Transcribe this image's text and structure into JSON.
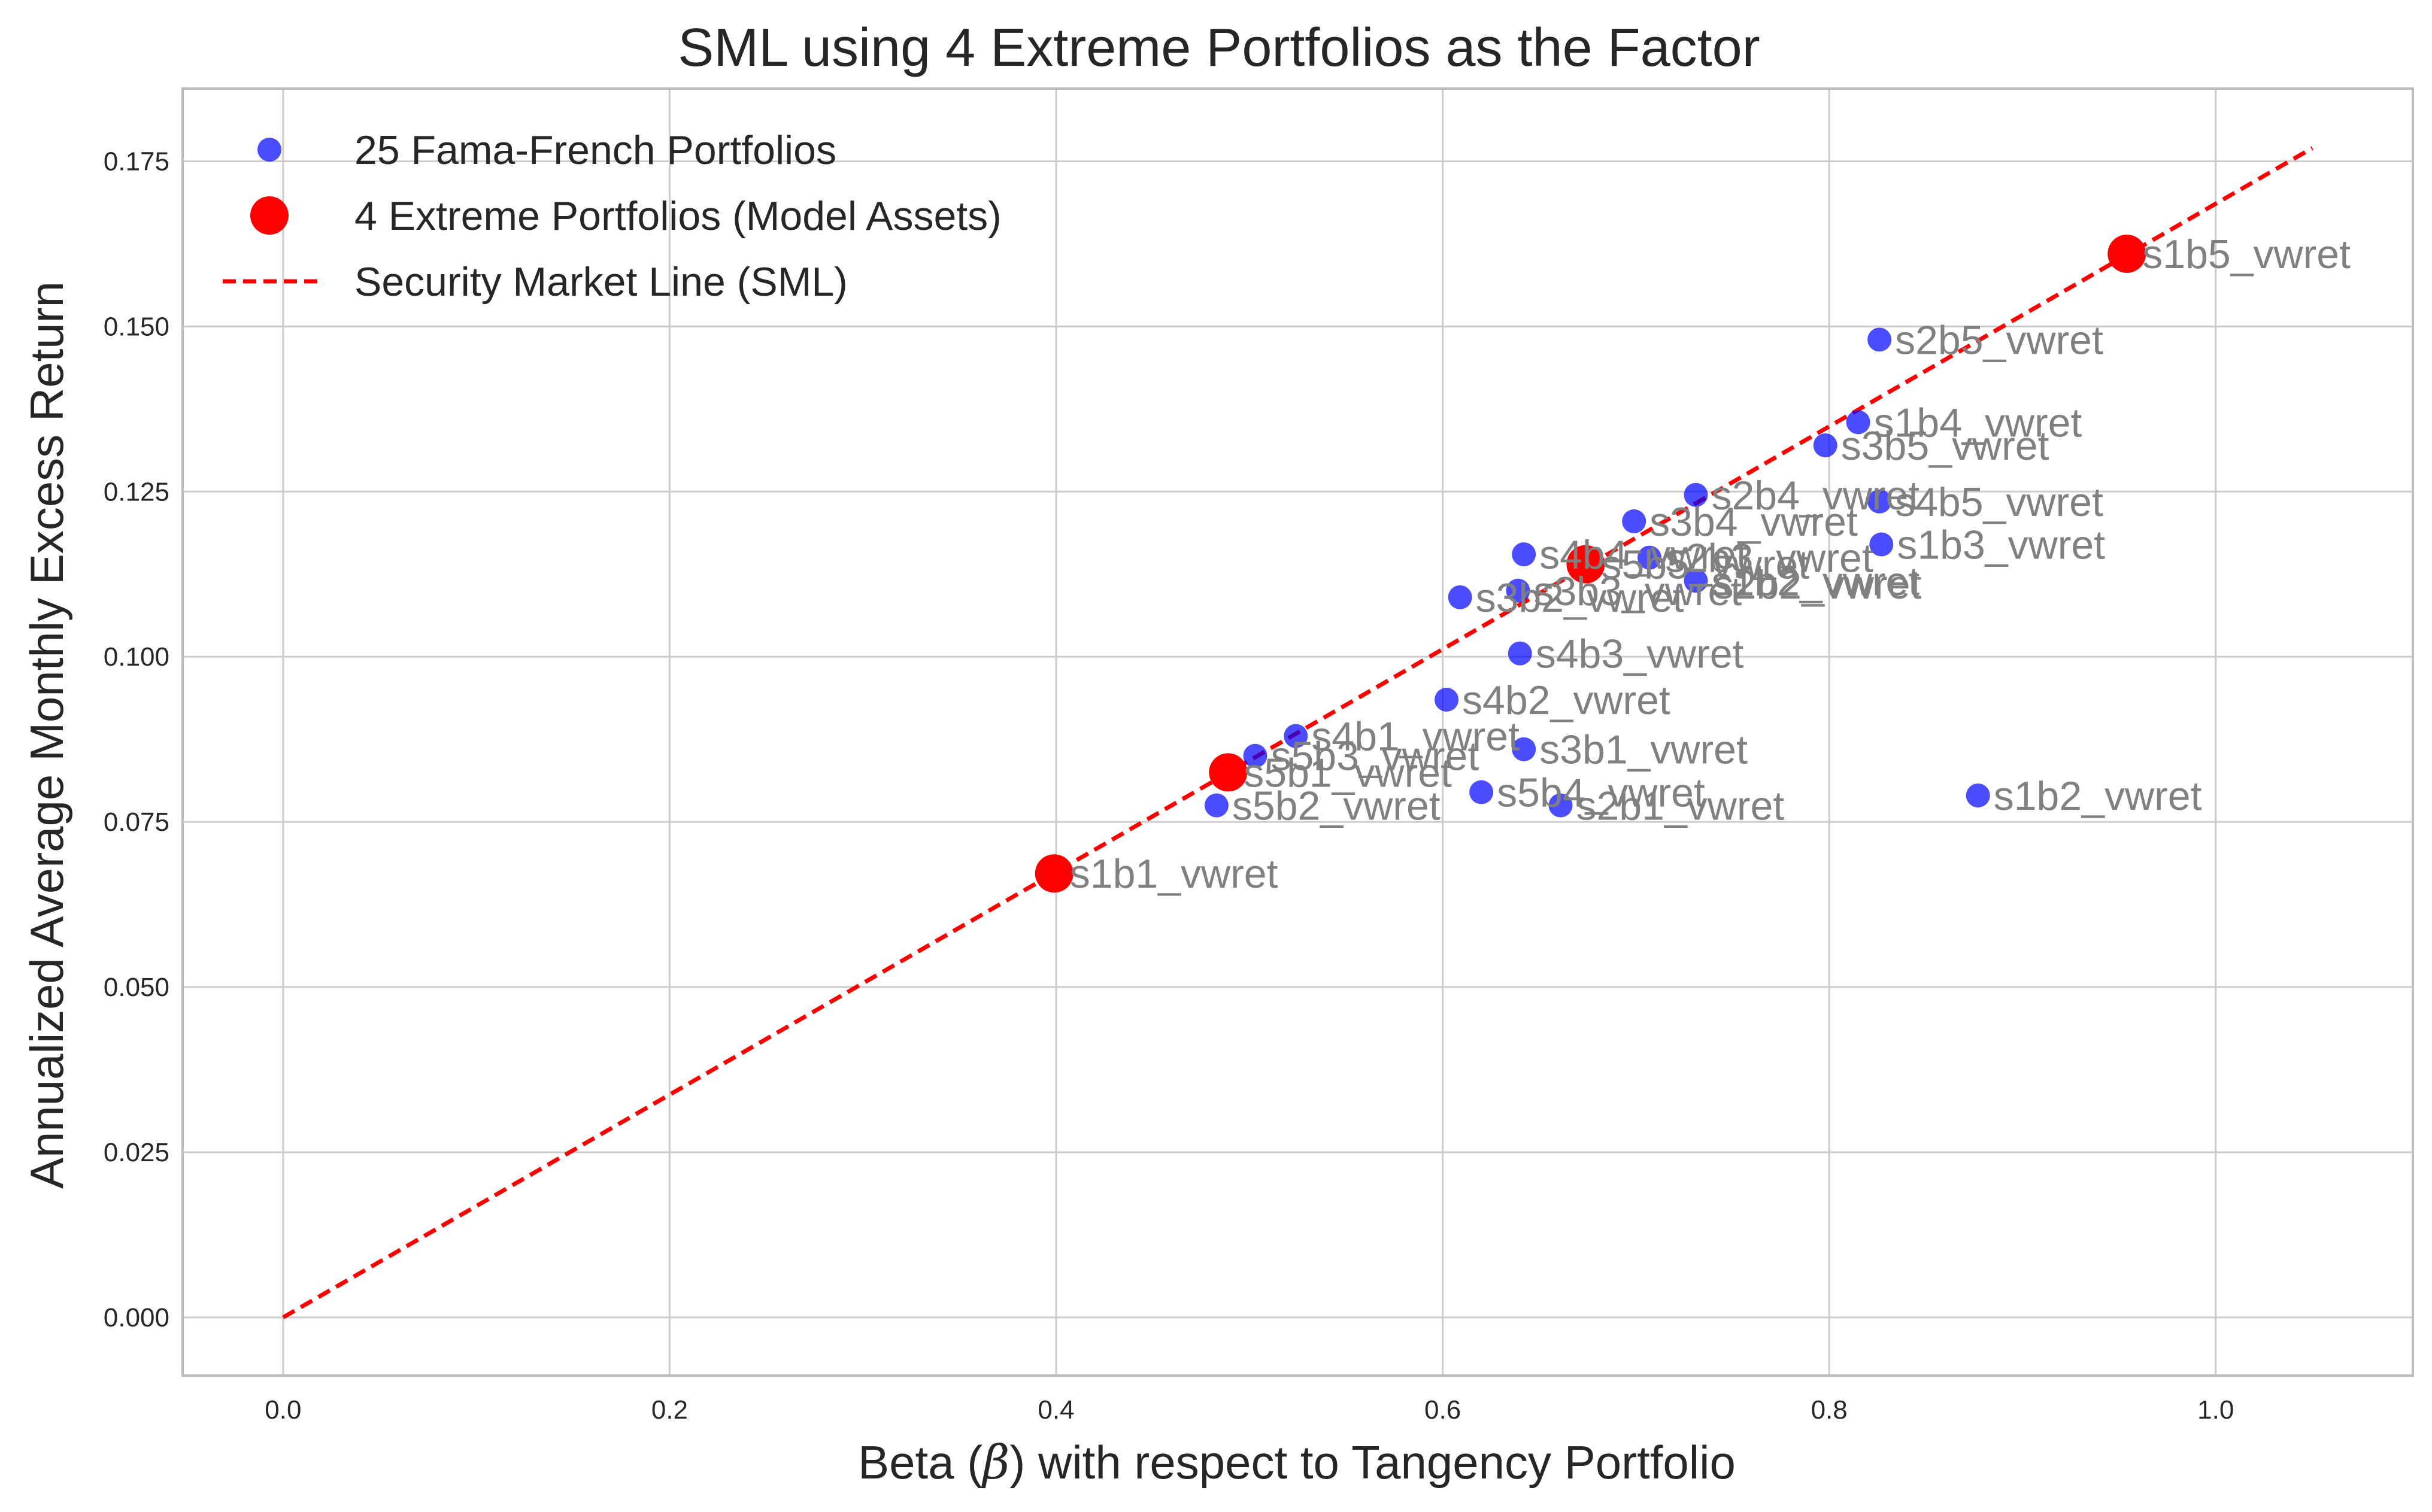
{
  "chart_data": {
    "type": "scatter",
    "title": "SML using 4 Extreme Portfolios as the Factor",
    "xlabel": "Beta ($\\beta$) with respect to Tangency Portfolio",
    "xlabel_parts": [
      "Beta (",
      "β",
      ") with respect to Tangency Portfolio"
    ],
    "ylabel": "Annualized Average Monthly Excess Return",
    "xlim": [
      -0.052,
      1.102
    ],
    "ylim": [
      -0.0088,
      0.186
    ],
    "x_ticks": [
      0.0,
      0.2,
      0.4,
      0.6,
      0.8,
      1.0
    ],
    "x_tick_labels": [
      "0.0",
      "0.2",
      "0.4",
      "0.6",
      "0.8",
      "1.0"
    ],
    "y_ticks": [
      0.0,
      0.025,
      0.05,
      0.075,
      0.1,
      0.125,
      0.15,
      0.175
    ],
    "y_tick_labels": [
      "0.000",
      "0.025",
      "0.050",
      "0.075",
      "0.100",
      "0.125",
      "0.150",
      "0.175"
    ],
    "grid": true,
    "legend_position": "top-left",
    "colors": {
      "portfolios": "#0000ff",
      "extreme": "#ff0000",
      "sml": "#ff0000",
      "labels": "#808080",
      "grid": "#cccccc",
      "axes": "#bdbdbd"
    },
    "series": [
      {
        "name": "25 Fama-French Portfolios",
        "kind": "scatter",
        "points": [
          {
            "x": 0.826,
            "y": 0.148
          },
          {
            "x": 0.815,
            "y": 0.1355
          },
          {
            "x": 0.798,
            "y": 0.132
          },
          {
            "x": 0.731,
            "y": 0.1245
          },
          {
            "x": 0.826,
            "y": 0.1235
          },
          {
            "x": 0.699,
            "y": 0.1205
          },
          {
            "x": 0.827,
            "y": 0.117
          },
          {
            "x": 0.642,
            "y": 0.1155
          },
          {
            "x": 0.707,
            "y": 0.115
          },
          {
            "x": 0.731,
            "y": 0.1115
          },
          {
            "x": 0.639,
            "y": 0.11
          },
          {
            "x": 0.609,
            "y": 0.109
          },
          {
            "x": 0.64,
            "y": 0.1005
          },
          {
            "x": 0.602,
            "y": 0.0935
          },
          {
            "x": 0.524,
            "y": 0.088
          },
          {
            "x": 0.642,
            "y": 0.086
          },
          {
            "x": 0.503,
            "y": 0.085
          },
          {
            "x": 0.62,
            "y": 0.0795
          },
          {
            "x": 0.877,
            "y": 0.079
          },
          {
            "x": 0.483,
            "y": 0.0775
          },
          {
            "x": 0.661,
            "y": 0.0775
          }
        ]
      },
      {
        "name": "4 Extreme Portfolios (Model Assets)",
        "kind": "scatter",
        "points": [
          {
            "x": 0.954,
            "y": 0.161
          },
          {
            "x": 0.674,
            "y": 0.114
          },
          {
            "x": 0.489,
            "y": 0.0825
          },
          {
            "x": 0.399,
            "y": 0.0672
          }
        ]
      },
      {
        "name": "Security Market Line (SML)",
        "kind": "line",
        "style": "dashed",
        "x": [
          0.0,
          1.05
        ],
        "y": [
          0.0,
          0.177
        ]
      }
    ],
    "annotations": [
      {
        "text": "s1b5_vwret",
        "x": 0.954,
        "y": 0.161
      },
      {
        "text": "s2b5_vwret",
        "x": 0.826,
        "y": 0.148
      },
      {
        "text": "s1b4_vwret",
        "x": 0.815,
        "y": 0.1355
      },
      {
        "text": "s3b5_vwret",
        "x": 0.798,
        "y": 0.132
      },
      {
        "text": "s2b4_vwret",
        "x": 0.731,
        "y": 0.1245
      },
      {
        "text": "s4b5_vwret",
        "x": 0.826,
        "y": 0.1235
      },
      {
        "text": "s3b4_vwret",
        "x": 0.699,
        "y": 0.1205
      },
      {
        "text": "s1b3_vwret",
        "x": 0.827,
        "y": 0.117
      },
      {
        "text": "s4b4_vwret",
        "x": 0.642,
        "y": 0.1155
      },
      {
        "text": "s2b3_vwret",
        "x": 0.707,
        "y": 0.115
      },
      {
        "text": "s5b5_vwret",
        "x": 0.674,
        "y": 0.114
      },
      {
        "text": "s1b2_vwret",
        "x": 0.731,
        "y": 0.1115
      },
      {
        "text": "s3b3_vwret",
        "x": 0.639,
        "y": 0.11
      },
      {
        "text": "s2b2_vwret",
        "x": 0.732,
        "y": 0.111
      },
      {
        "text": "s3b2_vwret",
        "x": 0.609,
        "y": 0.109
      },
      {
        "text": "s4b3_vwret",
        "x": 0.64,
        "y": 0.1005
      },
      {
        "text": "s4b2_vwret",
        "x": 0.602,
        "y": 0.0935
      },
      {
        "text": "s4b1_vwret",
        "x": 0.524,
        "y": 0.088
      },
      {
        "text": "s3b1_vwret",
        "x": 0.642,
        "y": 0.086
      },
      {
        "text": "s5b3_vwret",
        "x": 0.503,
        "y": 0.085
      },
      {
        "text": "s5b1_vwret",
        "x": 0.489,
        "y": 0.0825
      },
      {
        "text": "s5b4_vwret",
        "x": 0.62,
        "y": 0.0795
      },
      {
        "text": "s1b2_vwret",
        "x": 0.877,
        "y": 0.079
      },
      {
        "text": "s5b2_vwret",
        "x": 0.483,
        "y": 0.0775
      },
      {
        "text": "s2b1_vwret",
        "x": 0.661,
        "y": 0.0775
      },
      {
        "text": "s1b1_vwret",
        "x": 0.399,
        "y": 0.0672
      }
    ]
  }
}
